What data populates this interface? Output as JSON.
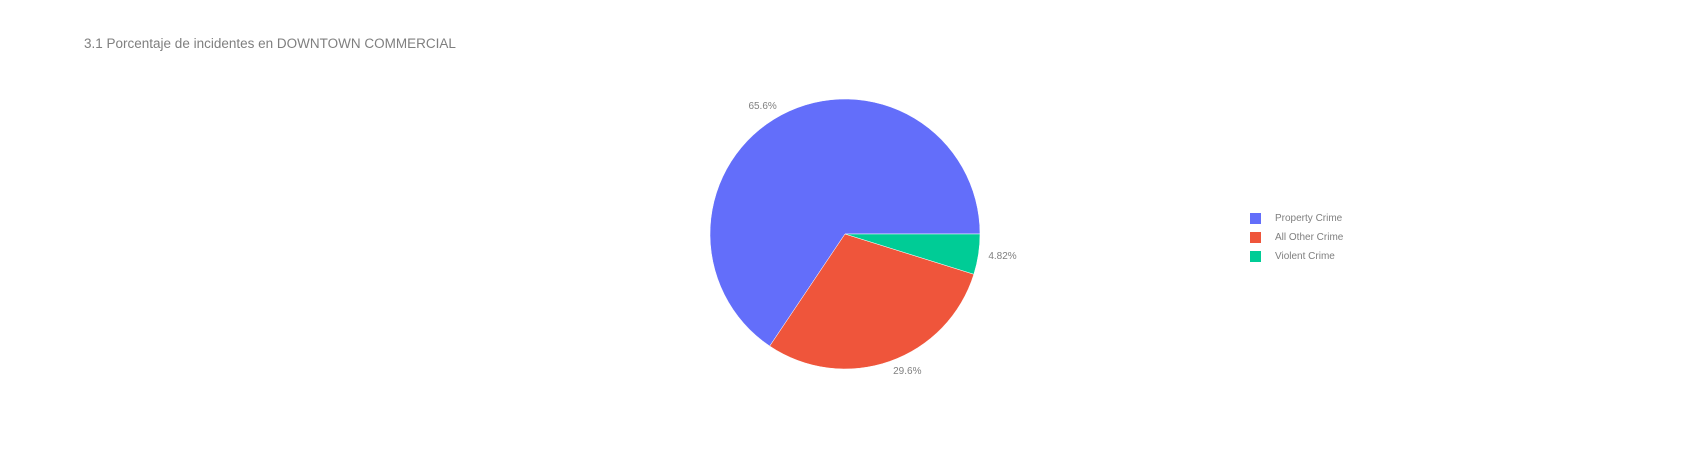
{
  "chart_data": {
    "type": "pie",
    "title": "3.1 Porcentaje de incidentes en DOWNTOWN COMMERCIAL",
    "categories": [
      "Property Crime",
      "All Other Crime",
      "Violent Crime"
    ],
    "values": [
      65.6,
      29.6,
      4.82
    ],
    "value_labels": [
      "65.6%",
      "29.6%",
      "4.82%"
    ],
    "colors": [
      "#636efa",
      "#ef553b",
      "#00cc96"
    ],
    "legend": {
      "placement": "right",
      "entries": [
        "Property Crime",
        "All Other Crime",
        "Violent Crime"
      ]
    },
    "start_angle": "3 o'clock",
    "direction": "counterclockwise"
  }
}
